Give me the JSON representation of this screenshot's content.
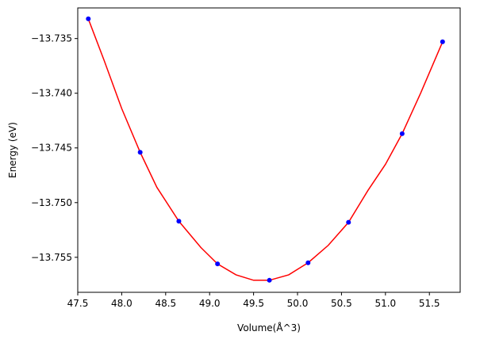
{
  "chart_data": {
    "type": "scatter",
    "xlabel": "Volume(Å^3)",
    "ylabel": "Energy (eV)",
    "xlim": [
      47.5,
      51.85
    ],
    "ylim": [
      -13.7582,
      -13.7322
    ],
    "x_ticks": [
      47.5,
      48.0,
      48.5,
      49.0,
      49.5,
      50.0,
      50.5,
      51.0,
      51.5
    ],
    "x_tick_labels": [
      "47.5",
      "48.0",
      "48.5",
      "49.0",
      "49.5",
      "50.0",
      "50.5",
      "51.0",
      "51.5"
    ],
    "y_ticks": [
      -13.755,
      -13.75,
      -13.745,
      -13.74,
      -13.735
    ],
    "y_tick_labels": [
      "−13.755",
      "−13.750",
      "−13.745",
      "−13.740",
      "−13.735"
    ],
    "grid": false,
    "series": [
      {
        "kind": "points",
        "color": "#0000ff",
        "x": [
          47.62,
          48.21,
          48.65,
          49.09,
          49.68,
          50.12,
          50.58,
          51.19,
          51.65
        ],
        "y": [
          -13.7332,
          -13.7454,
          -13.7517,
          -13.7556,
          -13.7571,
          -13.7555,
          -13.7518,
          -13.7437,
          -13.7353
        ]
      },
      {
        "kind": "fit-line",
        "color": "#ff0000",
        "x": [
          47.62,
          47.8,
          48.0,
          48.21,
          48.4,
          48.65,
          48.9,
          49.09,
          49.3,
          49.5,
          49.68,
          49.9,
          50.12,
          50.35,
          50.58,
          50.8,
          51.0,
          51.19,
          51.4,
          51.65
        ],
        "y": [
          -13.7332,
          -13.737,
          -13.7414,
          -13.7454,
          -13.7486,
          -13.7517,
          -13.7541,
          -13.7556,
          -13.7566,
          -13.7571,
          -13.7571,
          -13.7566,
          -13.7555,
          -13.7539,
          -13.7518,
          -13.7489,
          -13.7465,
          -13.7437,
          -13.74,
          -13.7353
        ]
      }
    ]
  }
}
